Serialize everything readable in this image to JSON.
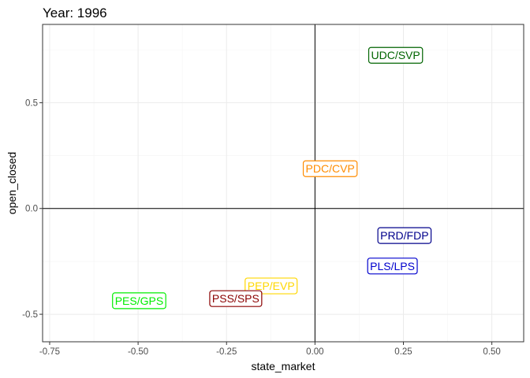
{
  "chart_data": {
    "type": "scatter",
    "title": "Year: 1996",
    "xlabel": "state_market",
    "ylabel": "open_closed",
    "xlim": [
      -0.77,
      0.59
    ],
    "ylim": [
      -0.63,
      0.87
    ],
    "x_ticks": [
      -0.75,
      -0.5,
      -0.25,
      0.0,
      0.25,
      0.5
    ],
    "x_tick_labels": [
      "-0.75",
      "-0.50",
      "-0.25",
      "0.00",
      "0.25",
      "0.50"
    ],
    "y_ticks": [
      -0.5,
      0.0,
      0.5
    ],
    "y_tick_labels": [
      "-0.5",
      "0.0",
      "0.5"
    ],
    "grid": true,
    "reference_lines": {
      "x": 0,
      "y": 0
    },
    "points": [
      {
        "label": "UDC/SVP",
        "x": 0.228,
        "y": 0.724,
        "color": "#006400"
      },
      {
        "label": "PDC/CVP",
        "x": 0.043,
        "y": 0.188,
        "color": "#FF8C00"
      },
      {
        "label": "PRD/FDP",
        "x": 0.253,
        "y": -0.128,
        "color": "#00008B"
      },
      {
        "label": "PLS/LPS",
        "x": 0.219,
        "y": -0.272,
        "color": "#0000CD"
      },
      {
        "label": "PEP/EVP",
        "x": -0.124,
        "y": -0.366,
        "color": "#FFD700"
      },
      {
        "label": "PES/GPS",
        "x": -0.497,
        "y": -0.436,
        "color": "#00EE00"
      },
      {
        "label": "PSS/SPS",
        "x": -0.224,
        "y": -0.426,
        "color": "#8B0000"
      }
    ]
  }
}
